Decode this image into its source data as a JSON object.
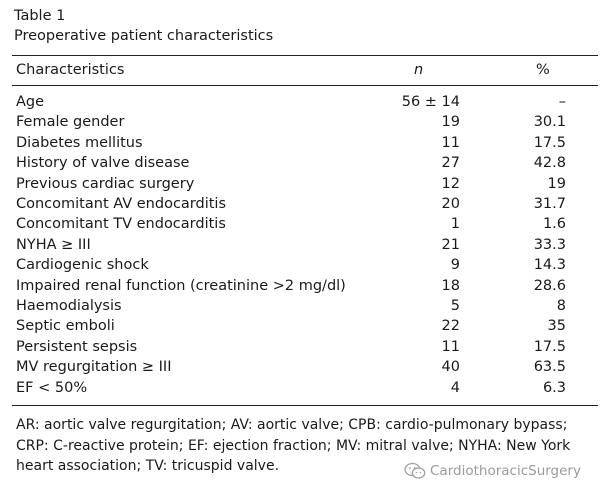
{
  "table": {
    "number": "Table 1",
    "title": "Preoperative patient characteristics",
    "columns": [
      "Characteristics",
      "n",
      "%"
    ],
    "rows": [
      {
        "label": "Age",
        "n": "56 ± 14",
        "pct": "–"
      },
      {
        "label": "Female gender",
        "n": "19",
        "pct": "30.1"
      },
      {
        "label": "Diabetes mellitus",
        "n": "11",
        "pct": "17.5"
      },
      {
        "label": "History of valve disease",
        "n": "27",
        "pct": "42.8"
      },
      {
        "label": "Previous cardiac surgery",
        "n": "12",
        "pct": "19"
      },
      {
        "label": "Concomitant AV endocarditis",
        "n": "20",
        "pct": "31.7"
      },
      {
        "label": "Concomitant TV endocarditis",
        "n": "1",
        "pct": "1.6"
      },
      {
        "label": "NYHA ≥ III",
        "n": "21",
        "pct": "33.3"
      },
      {
        "label": "Cardiogenic shock",
        "n": "9",
        "pct": "14.3"
      },
      {
        "label": "Impaired renal function (creatinine >2 mg/dl)",
        "n": "18",
        "pct": "28.6"
      },
      {
        "label": "Haemodialysis",
        "n": "5",
        "pct": "8"
      },
      {
        "label": "Septic emboli",
        "n": "22",
        "pct": "35"
      },
      {
        "label": "Persistent sepsis",
        "n": "11",
        "pct": "17.5"
      },
      {
        "label": "MV regurgitation ≥ III",
        "n": "40",
        "pct": "63.5"
      },
      {
        "label": "EF < 50%",
        "n": "4",
        "pct": "6.3"
      }
    ],
    "footnote": "AR: aortic valve regurgitation; AV: aortic valve; CPB: cardio-pulmonary bypass; CRP: C-reactive protein; EF: ejection fraction; MV: mitral valve; NYHA: New York heart association; TV: tricuspid valve."
  },
  "watermark": {
    "text": "CardiothoracicSurgery",
    "icon": "wechat-icon"
  }
}
